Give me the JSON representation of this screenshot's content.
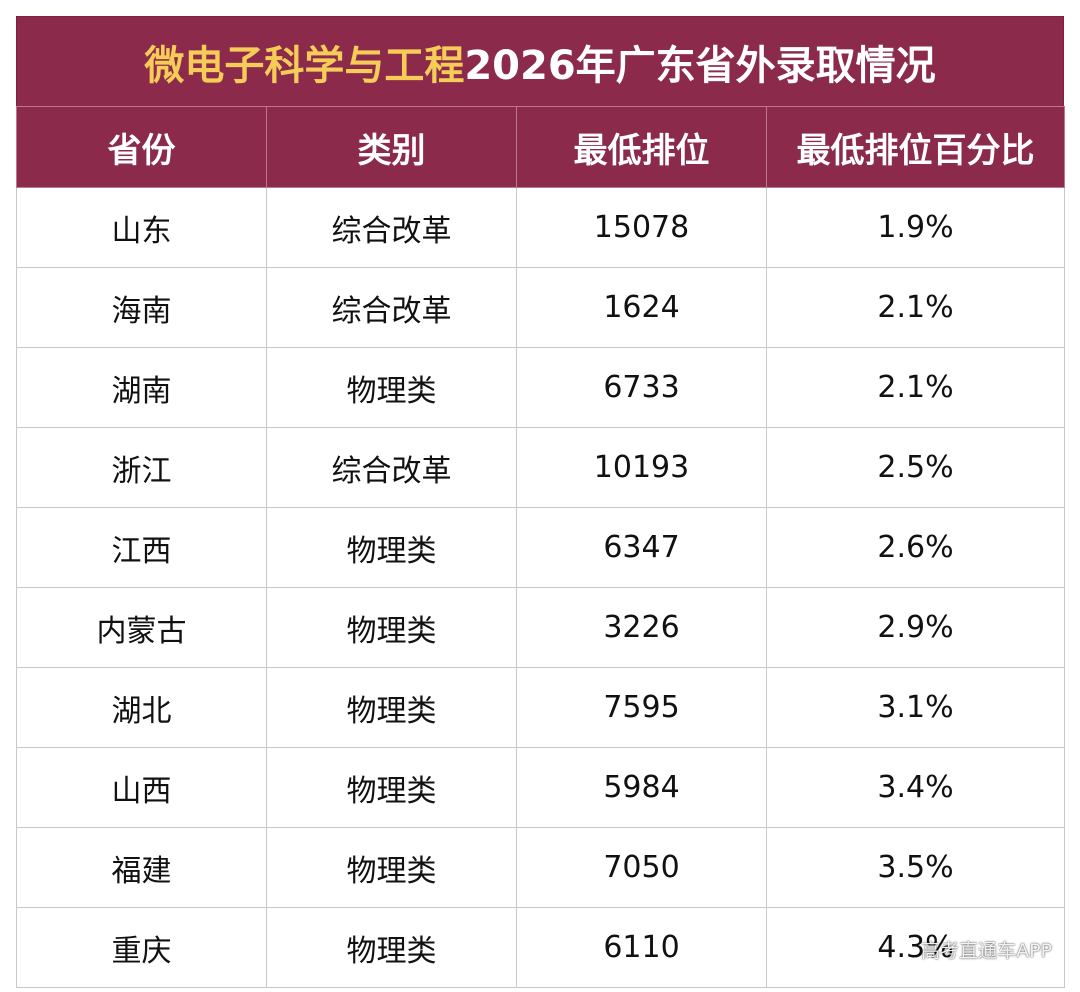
{
  "title": {
    "highlight": "微电子科学与工程",
    "rest": "2026年广东省外录取情况"
  },
  "colors": {
    "header_bg": "#8c2a4b",
    "title_highlight": "#f5cc58",
    "header_text": "#ffffff"
  },
  "columns": [
    "省份",
    "类别",
    "最低排位",
    "最低排位百分比"
  ],
  "rows": [
    {
      "province": "山东",
      "category": "综合改革",
      "min_rank": "15078",
      "min_rank_pct": "1.9%"
    },
    {
      "province": "海南",
      "category": "综合改革",
      "min_rank": "1624",
      "min_rank_pct": "2.1%"
    },
    {
      "province": "湖南",
      "category": "物理类",
      "min_rank": "6733",
      "min_rank_pct": "2.1%"
    },
    {
      "province": "浙江",
      "category": "综合改革",
      "min_rank": "10193",
      "min_rank_pct": "2.5%"
    },
    {
      "province": "江西",
      "category": "物理类",
      "min_rank": "6347",
      "min_rank_pct": "2.6%"
    },
    {
      "province": "内蒙古",
      "category": "物理类",
      "min_rank": "3226",
      "min_rank_pct": "2.9%"
    },
    {
      "province": "湖北",
      "category": "物理类",
      "min_rank": "7595",
      "min_rank_pct": "3.1%"
    },
    {
      "province": "山西",
      "category": "物理类",
      "min_rank": "5984",
      "min_rank_pct": "3.4%"
    },
    {
      "province": "福建",
      "category": "物理类",
      "min_rank": "7050",
      "min_rank_pct": "3.5%"
    },
    {
      "province": "重庆",
      "category": "物理类",
      "min_rank": "6110",
      "min_rank_pct": "4.3%"
    }
  ],
  "watermark": "高考直通车APP"
}
